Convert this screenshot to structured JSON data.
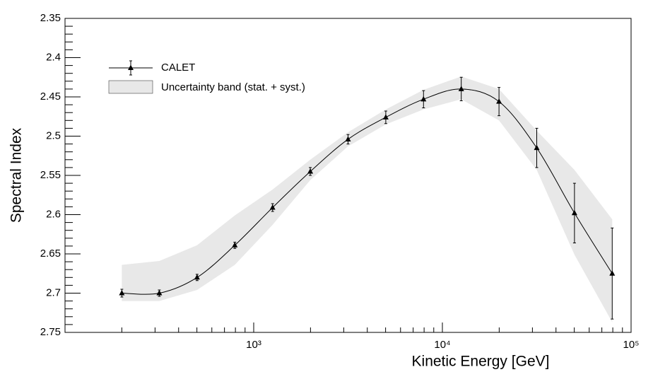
{
  "chart_data": {
    "type": "line",
    "x_label": "Kinetic Energy [GeV]",
    "y_label": "Spectral Index",
    "x": [
      200,
      316,
      501,
      794,
      1259,
      1995,
      3162,
      5012,
      7943,
      12589,
      19953,
      31623,
      50119,
      79433
    ],
    "series": [
      {
        "name": "CALET",
        "color": "#000000",
        "values": [
          2.7,
          2.7,
          2.68,
          2.639,
          2.591,
          2.545,
          2.504,
          2.476,
          2.453,
          2.44,
          2.456,
          2.515,
          2.598,
          2.675
        ],
        "errors": [
          0.005,
          0.004,
          0.004,
          0.004,
          0.005,
          0.005,
          0.006,
          0.008,
          0.011,
          0.015,
          0.018,
          0.025,
          0.038,
          0.058
        ]
      }
    ],
    "band": {
      "name": "Uncertainty band (stat. + syst.)",
      "color": "#e8e8e8",
      "lower": [
        2.664,
        2.659,
        2.639,
        2.601,
        2.568,
        2.53,
        2.495,
        2.466,
        2.441,
        2.424,
        2.44,
        2.493,
        2.543,
        2.606
      ],
      "upper": [
        2.71,
        2.71,
        2.696,
        2.664,
        2.613,
        2.556,
        2.513,
        2.485,
        2.466,
        2.453,
        2.48,
        2.543,
        2.651,
        2.737
      ]
    },
    "xlog": true,
    "xlim": [
      100,
      100000
    ],
    "xticks": [
      {
        "value": 1000,
        "label": "10³"
      },
      {
        "value": 10000,
        "label": "10⁴"
      },
      {
        "value": 100000,
        "label": "10⁵"
      }
    ],
    "ylim": [
      2.35,
      2.75
    ],
    "yinverted": true,
    "yticks": [
      2.35,
      2.4,
      2.45,
      2.5,
      2.55,
      2.6,
      2.65,
      2.7,
      2.75
    ],
    "legend": "upper left"
  }
}
